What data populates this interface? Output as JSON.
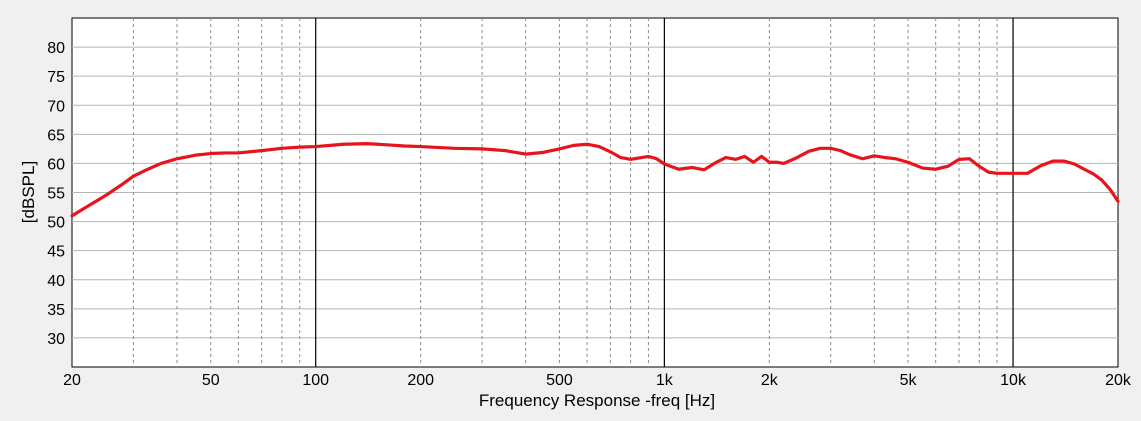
{
  "chart_data": {
    "type": "line",
    "xlabel": "Frequency Response -freq [Hz]",
    "ylabel": "[dBSPL]",
    "x_scale": "log",
    "xlim": [
      20,
      20000
    ],
    "ylim": [
      25,
      85
    ],
    "x_tick_values": [
      20,
      50,
      100,
      200,
      500,
      1000,
      2000,
      5000,
      10000,
      20000
    ],
    "x_tick_labels": [
      "20",
      "50",
      "100",
      "200",
      "500",
      "1k",
      "2k",
      "5k",
      "10k",
      "20k"
    ],
    "y_tick_values": [
      30,
      35,
      40,
      45,
      50,
      55,
      60,
      65,
      70,
      75,
      80
    ],
    "y_tick_labels": [
      "30",
      "35",
      "40",
      "45",
      "50",
      "55",
      "60",
      "65",
      "70",
      "75",
      "80"
    ],
    "grid": true,
    "series": [
      {
        "color": "#e8141b",
        "x": [
          20,
          22,
          25,
          28,
          30,
          33,
          36,
          40,
          45,
          50,
          55,
          60,
          70,
          80,
          90,
          100,
          110,
          120,
          140,
          160,
          180,
          200,
          250,
          300,
          350,
          400,
          450,
          500,
          550,
          600,
          650,
          700,
          750,
          800,
          900,
          950,
          1000,
          1100,
          1200,
          1300,
          1400,
          1500,
          1600,
          1700,
          1800,
          1900,
          2000,
          2100,
          2200,
          2400,
          2600,
          2800,
          3000,
          3200,
          3400,
          3700,
          4000,
          4300,
          4600,
          5000,
          5500,
          6000,
          6500,
          7000,
          7500,
          8000,
          8500,
          9000,
          10000,
          11000,
          12000,
          13000,
          14000,
          15000,
          16000,
          17000,
          18000,
          19000,
          20000
        ],
        "y": [
          51.0,
          52.5,
          54.5,
          56.5,
          57.8,
          59.0,
          60.0,
          60.8,
          61.4,
          61.7,
          61.8,
          61.8,
          62.2,
          62.6,
          62.8,
          62.9,
          63.1,
          63.3,
          63.4,
          63.2,
          63.0,
          62.9,
          62.6,
          62.5,
          62.2,
          61.6,
          61.9,
          62.5,
          63.1,
          63.3,
          62.9,
          62.0,
          61.0,
          60.7,
          61.2,
          60.8,
          59.9,
          59.0,
          59.3,
          58.9,
          60.1,
          61.0,
          60.7,
          61.2,
          60.2,
          61.2,
          60.2,
          60.2,
          60.0,
          61.0,
          62.1,
          62.6,
          62.6,
          62.2,
          61.5,
          60.8,
          61.3,
          61.0,
          60.8,
          60.2,
          59.2,
          59.0,
          59.5,
          60.7,
          60.8,
          59.5,
          58.5,
          58.3,
          58.3,
          58.3,
          59.6,
          60.4,
          60.4,
          59.9,
          59.0,
          58.2,
          57.1,
          55.5,
          53.5
        ]
      }
    ]
  }
}
